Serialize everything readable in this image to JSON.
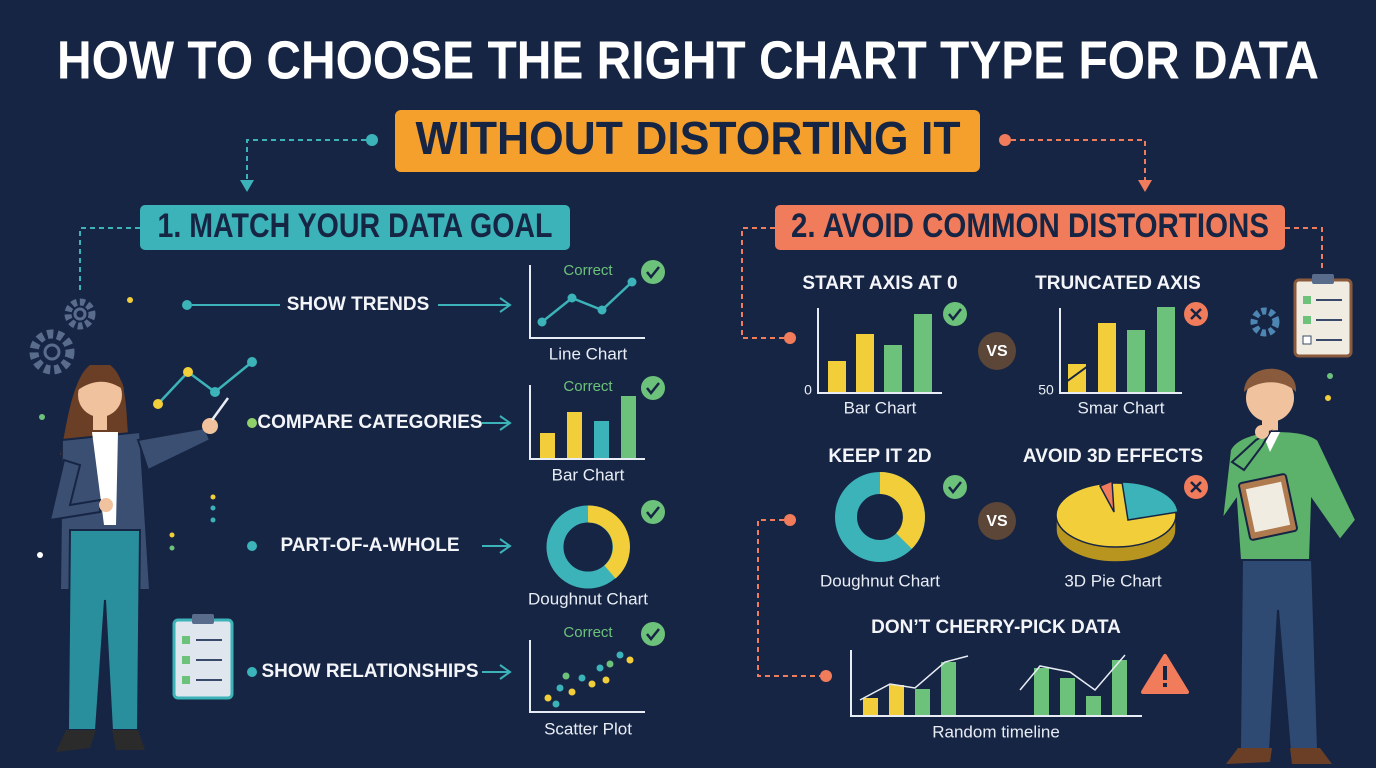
{
  "header": {
    "title": "HOW TO CHOOSE THE RIGHT CHART TYPE FOR DATA",
    "subtitle": "WITHOUT DISTORTING IT"
  },
  "left": {
    "heading": "1. MATCH YOUR DATA GOAL",
    "goals": [
      {
        "goal": "SHOW TRENDS",
        "chart": "Line Chart",
        "badge": "Correct"
      },
      {
        "goal": "COMPARE CATEGORIES",
        "chart": "Bar Chart",
        "badge": "Correct"
      },
      {
        "goal": "PART-OF-A-WHOLE",
        "chart": "Doughnut Chart"
      },
      {
        "goal": "SHOW RELATIONSHIPS",
        "chart": "Scatter Plot",
        "badge": "Correct"
      }
    ]
  },
  "right": {
    "heading": "2. AVOID COMMON DISTORTIONS",
    "vs": "VS",
    "comparisons": [
      {
        "good": {
          "title": "START AXIS AT 0",
          "axis_label": "0",
          "caption": "Bar Chart"
        },
        "bad": {
          "title": "TRUNCATED AXIS",
          "axis_label": "50",
          "caption": "Smar Chart"
        }
      },
      {
        "good": {
          "title": "KEEP IT 2D",
          "caption": "Doughnut Chart"
        },
        "bad": {
          "title": "AVOID 3D EFFECTS",
          "caption": "3D Pie Chart"
        }
      }
    ],
    "cherry_pick": {
      "title": "DON’T CHERRY-PICK DATA",
      "caption": "Random timeline"
    }
  }
}
